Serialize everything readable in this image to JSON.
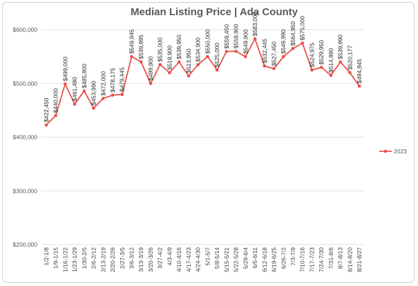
{
  "chart_data": {
    "type": "line",
    "title": "Median Listing Price | Ada County",
    "xlabel": "",
    "ylabel": "",
    "ylim": [
      200000,
      600000
    ],
    "yticks": [
      200000,
      300000,
      400000,
      500000,
      600000
    ],
    "ytick_labels": [
      "$200,000",
      "$300,000",
      "$400,000",
      "$500,000",
      "$600,000"
    ],
    "grid": true,
    "legend": "right",
    "color": "#e8514a",
    "categories": [
      "1/2-1/8",
      "1/9-1/15",
      "1/16-1/22",
      "1/23-1/29",
      "1/30-2/5",
      "2/6-2/12",
      "2/13-2/19",
      "2/20-2/26",
      "2/27-3/5",
      "3/6-3/12",
      "3/13-3/19",
      "3/20-3/26",
      "3/27-4/2",
      "4/3-4/9",
      "4/10-4/16",
      "4/17-4/23",
      "4/24-4/30",
      "5/1-5/7",
      "5/8-5/14",
      "5/15-5/21",
      "5/22-5/28",
      "5/29-6/4",
      "6/5-6/11",
      "6/12-6/18",
      "6/19-6/25",
      "6/26-7/2",
      "7/3-7/9",
      "7/10-7/16",
      "7/17-7/23",
      "7/24-7/30",
      "7/31-8/6",
      "8/7-8/13",
      "8/14-8/20",
      "8/21-8/27"
    ],
    "series": [
      {
        "name": "2023",
        "values": [
          422450,
          440000,
          499000,
          461490,
          485900,
          453990,
          472000,
          478175,
          479445,
          549945,
          539995,
          499900,
          535000,
          519900,
          539950,
          513950,
          534900,
          550000,
          525000,
          559450,
          559900,
          549900,
          583000,
          532445,
          527450,
          549990,
          564950,
          575000,
          524975,
          529950,
          514990,
          539990,
          520177,
          494945
        ],
        "labels": [
          "$422,450",
          "$440,000",
          "$499,000",
          "$461,490",
          "$485,900",
          "$453,990",
          "$472,000",
          "$478,175",
          "$479,445",
          "$549,945",
          "$539,995",
          "$499,900",
          "$535,000",
          "$519,900",
          "$539,950",
          "$513,950",
          "$534,900",
          "$550,000",
          "$525,000",
          "$559,450",
          "$559,900",
          "$549,900",
          "$583,000",
          "$532,445",
          "$527,450",
          "$549,990",
          "$564,950",
          "$575,000",
          "$524,975",
          "$529,950",
          "$514,990",
          "$539,990",
          "$520,177",
          "$494,945"
        ]
      }
    ]
  }
}
